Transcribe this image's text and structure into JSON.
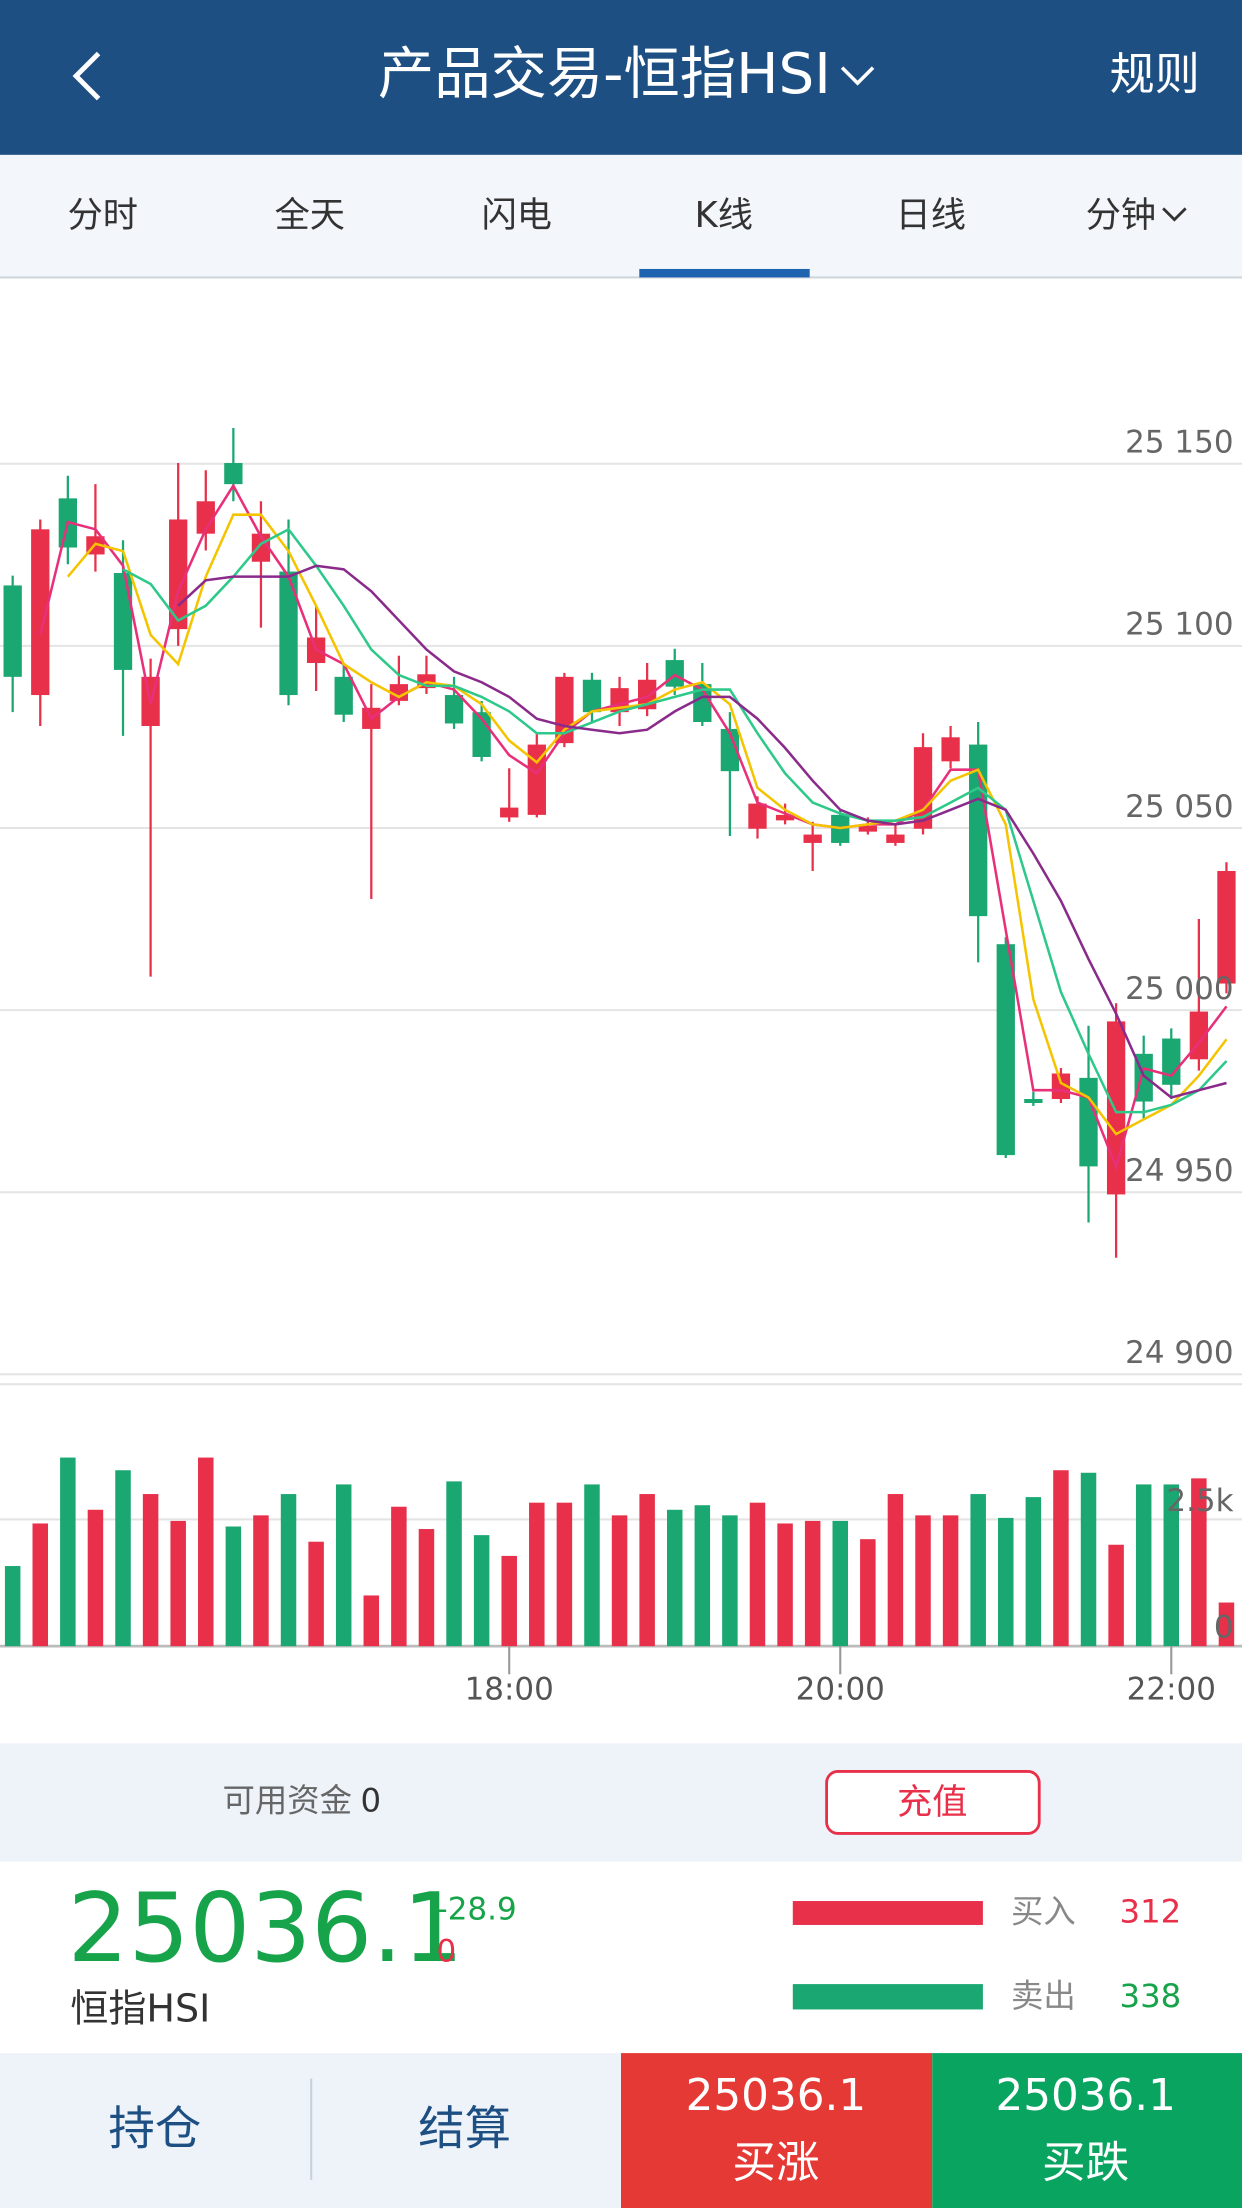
{
  "header": {
    "title": "产品交易-恒指HSI",
    "right": "规则"
  },
  "tabs": [
    "分时",
    "全天",
    "闪电",
    "K线",
    "日线",
    "分钟"
  ],
  "chart_data": [
    {
      "type": "candlestick",
      "up_color": "#e8304a",
      "down_color": "#1aa772",
      "ylim": [
        24900,
        25200
      ],
      "yticks": [
        {
          "value": 24900,
          "label": "24 900"
        },
        {
          "value": 24950,
          "label": "24 950"
        },
        {
          "value": 25000,
          "label": "25 000"
        },
        {
          "value": 25050,
          "label": "25 050"
        },
        {
          "value": 25100,
          "label": "25 100"
        },
        {
          "value": 25150,
          "label": "25 150"
        }
      ],
      "grid": true,
      "open": [
        25116.6,
        25086.5,
        25140.5,
        25125.1,
        25120.0,
        25078.0,
        25104.6,
        25130.8,
        25150.2,
        25123.1,
        25120.4,
        25095.3,
        25091.5,
        25077.2,
        25084.9,
        25088.4,
        25086.5,
        25081.8,
        25052.9,
        25053.6,
        25073.3,
        25090.7,
        25081.8,
        25082.6,
        25096.1,
        25089.5,
        25077.2,
        25049.8,
        25052.1,
        25045.9,
        25053.6,
        25049.0,
        25045.9,
        25049.8,
        25068.3,
        25072.9,
        25018.1,
        24975.6,
        24975.6,
        24981.4,
        24949.4,
        24988.0,
        24992.2,
        24986.5,
        25007.3
      ],
      "high": [
        25119.3,
        25134.7,
        25146.7,
        25144.4,
        25129.0,
        25096.5,
        25150.2,
        25148.2,
        25159.8,
        25139.7,
        25134.7,
        25110.8,
        25095.3,
        25089.5,
        25097.3,
        25097.3,
        25091.5,
        25084.9,
        25066.4,
        25076.0,
        25092.6,
        25092.6,
        25091.5,
        25095.3,
        25099.2,
        25095.3,
        25081.8,
        25058.7,
        25056.7,
        25051.7,
        25054.8,
        25052.9,
        25051.0,
        25076.0,
        25078.0,
        25079.1,
        25020.0,
        24977.6,
        24984.1,
        24995.7,
        25001.9,
        24993.0,
        24995.0,
        25025.0,
        25040.6
      ],
      "low": [
        25081.8,
        25078.0,
        25122.4,
        25120.4,
        25075.3,
        25009.2,
        25100.0,
        25126.2,
        25139.7,
        25105.0,
        25083.7,
        25087.6,
        25079.1,
        25030.5,
        25083.7,
        25086.8,
        25077.2,
        25068.3,
        25051.7,
        25052.9,
        25072.2,
        25079.1,
        25078.0,
        25080.7,
        25086.5,
        25078.0,
        25047.8,
        25047.1,
        25051.0,
        25038.2,
        25045.1,
        25048.2,
        25045.1,
        25048.2,
        25066.4,
        25013.1,
        24959.4,
        24973.7,
        24974.5,
        24941.7,
        24932.0,
        24969.8,
        24975.6,
        24983.4,
        25004.6
      ],
      "close": [
        25091.5,
        25132.0,
        25127.0,
        25130.1,
        25093.4,
        25091.5,
        25134.7,
        25139.7,
        25144.4,
        25130.8,
        25086.5,
        25102.3,
        25081.1,
        25083.0,
        25089.5,
        25092.2,
        25078.7,
        25069.5,
        25055.6,
        25072.9,
        25091.5,
        25081.8,
        25088.4,
        25090.7,
        25088.8,
        25079.1,
        25065.6,
        25056.7,
        25053.6,
        25048.2,
        25045.9,
        25050.6,
        25048.2,
        25072.2,
        25074.9,
        25025.8,
        24960.2,
        24974.5,
        24982.6,
        24957.1,
        24996.9,
        24974.9,
        24979.5,
        24999.6,
        25038.2
      ],
      "series": [
        {
          "color": "#e8307a",
          "values": [
            null,
            25103,
            25134,
            25132,
            25122,
            25084,
            25115,
            25132,
            25144,
            25130,
            25119,
            25099,
            25095,
            25080,
            25086,
            25090,
            25088,
            25080,
            25070,
            25065,
            25076,
            25082,
            25084,
            25086,
            25092,
            25088,
            25076,
            25057,
            25054,
            25051,
            25050,
            25051,
            25051,
            25055,
            25066,
            25066,
            25022,
            24978,
            24978,
            24976,
            24957,
            24984,
            24982,
            24991,
            25001
          ]
        },
        {
          "color": "#f5c400",
          "values": [
            null,
            null,
            25119,
            25128,
            25126,
            25103,
            25095,
            25119,
            25136,
            25136,
            25126,
            25111,
            25095,
            25090,
            25086,
            25090,
            25089,
            25084,
            25074,
            25068,
            25077,
            25082,
            25083,
            25084,
            25088,
            25090,
            25084,
            25061,
            25055,
            25051,
            25050,
            25051,
            25052,
            25055,
            25063,
            25066,
            25051,
            25003,
            24980,
            24976,
            24966,
            24970,
            24974,
            24982,
            24992
          ]
        },
        {
          "color": "#2ec98a",
          "values": [
            null,
            null,
            null,
            null,
            25121,
            25117,
            25107,
            25111,
            25119,
            25128,
            25132,
            25122,
            25111,
            25099,
            25092,
            25089,
            25089,
            25086,
            25082,
            25076,
            25076,
            25079,
            25082,
            25084,
            25086,
            25088,
            25088,
            25076,
            25065,
            25057,
            25054,
            25052,
            25052,
            25053,
            25057,
            25061,
            25055,
            25030,
            25005,
            24988,
            24972,
            24972,
            24974,
            24978,
            24986
          ]
        },
        {
          "color": "#8a2a8a",
          "values": [
            null,
            null,
            null,
            null,
            null,
            null,
            25111,
            25118,
            25119,
            25119,
            25119,
            25122,
            25121,
            25115,
            25107,
            25099,
            25093,
            25090,
            25086,
            25080,
            25078,
            25077,
            25076,
            25077,
            25082,
            25086,
            25086,
            25080,
            25072,
            25063,
            25055,
            25052,
            25051,
            25052,
            25055,
            25058,
            25055,
            25043,
            25030,
            25014,
            24999,
            24982,
            24976,
            24978,
            24980
          ]
        }
      ]
    },
    {
      "type": "bar",
      "categories": [
        null,
        null,
        null,
        null,
        null,
        null,
        null,
        null,
        null,
        null,
        null,
        null,
        null,
        null,
        null,
        null,
        null,
        null,
        "18:00",
        null,
        null,
        null,
        null,
        null,
        null,
        null,
        null,
        null,
        null,
        null,
        "20:00",
        null,
        null,
        null,
        null,
        null,
        null,
        null,
        null,
        null,
        null,
        null,
        "22:00",
        null,
        null
      ],
      "values": [
        1580,
        2420,
        3720,
        2690,
        3470,
        3000,
        2470,
        3720,
        2360,
        2580,
        3000,
        2060,
        3190,
        1000,
        2750,
        2310,
        3250,
        2190,
        1780,
        2830,
        2830,
        3190,
        2580,
        3000,
        2690,
        2780,
        2580,
        2830,
        2420,
        2470,
        2470,
        2110,
        3000,
        2580,
        2580,
        3000,
        2530,
        2940,
        3470,
        3420,
        2000,
        3190,
        3190,
        3310,
        860
      ],
      "ylim": [
        0,
        5000
      ],
      "yticks": [
        0,
        {
          "value": 2500,
          "label": "2.5k"
        }
      ],
      "grid": true
    }
  ],
  "account": {
    "label": "可用资金",
    "value": 0,
    "button": "充值"
  },
  "quote": {
    "price": 25036.1,
    "change": -28.9,
    "change_pct": 0,
    "name": "恒指HSI"
  },
  "orders": [
    {
      "label": "买入",
      "value": 312
    },
    {
      "label": "卖出",
      "value": 338
    }
  ],
  "footer": {
    "tabs": [
      "持仓",
      "结算"
    ],
    "buttons": [
      {
        "price": 25036.1,
        "label": "买涨"
      },
      {
        "price": 25036.1,
        "label": "买跌"
      }
    ]
  }
}
